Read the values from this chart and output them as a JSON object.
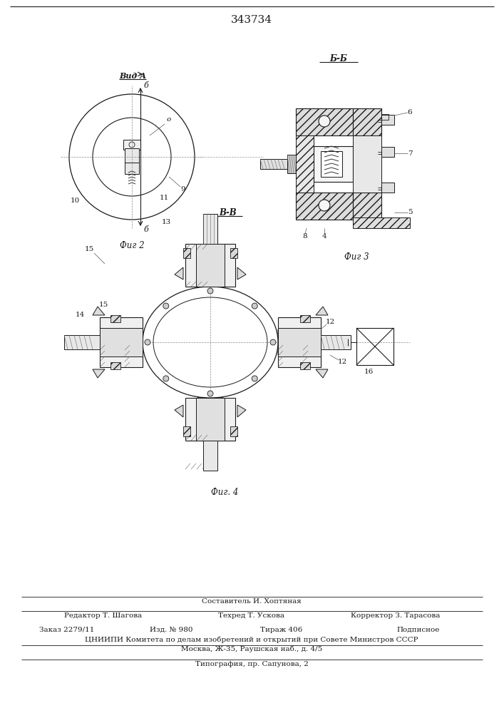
{
  "title": "343734",
  "background_color": "#ffffff",
  "fig2_label": "Фиг 2",
  "fig3_label": "Фиг 3",
  "fig4_label": "Фиг. 4",
  "vid_a_label": "Вид А",
  "b_b_label": "Б-Б",
  "v_v_label": "В-В",
  "footer_line1": "Составитель И. Хоптяная",
  "footer_line2_col1": "Редактор Т. Шагова",
  "footer_line2_col2": "Техред Т. Ускова",
  "footer_line2_col3": "Корректор З. Тарасова",
  "footer_line3_col1": "Заказ 2279/11",
  "footer_line3_col2": "Изд. № 980",
  "footer_line3_col3": "Тираж 406",
  "footer_line3_col4": "Подписное",
  "footer_line4": "ЦНИИПИ Комитета по делам изобретений и открытий при Совете Министров СССР",
  "footer_line5": "Москва, Ж-35, Раушская наб., д. 4/5",
  "footer_line6": "Типография, пр. Сапунова, 2",
  "text_color": "#1a1a1a",
  "line_color": "#1a1a1a",
  "label_fontsize": 7.5,
  "title_fontsize": 11
}
